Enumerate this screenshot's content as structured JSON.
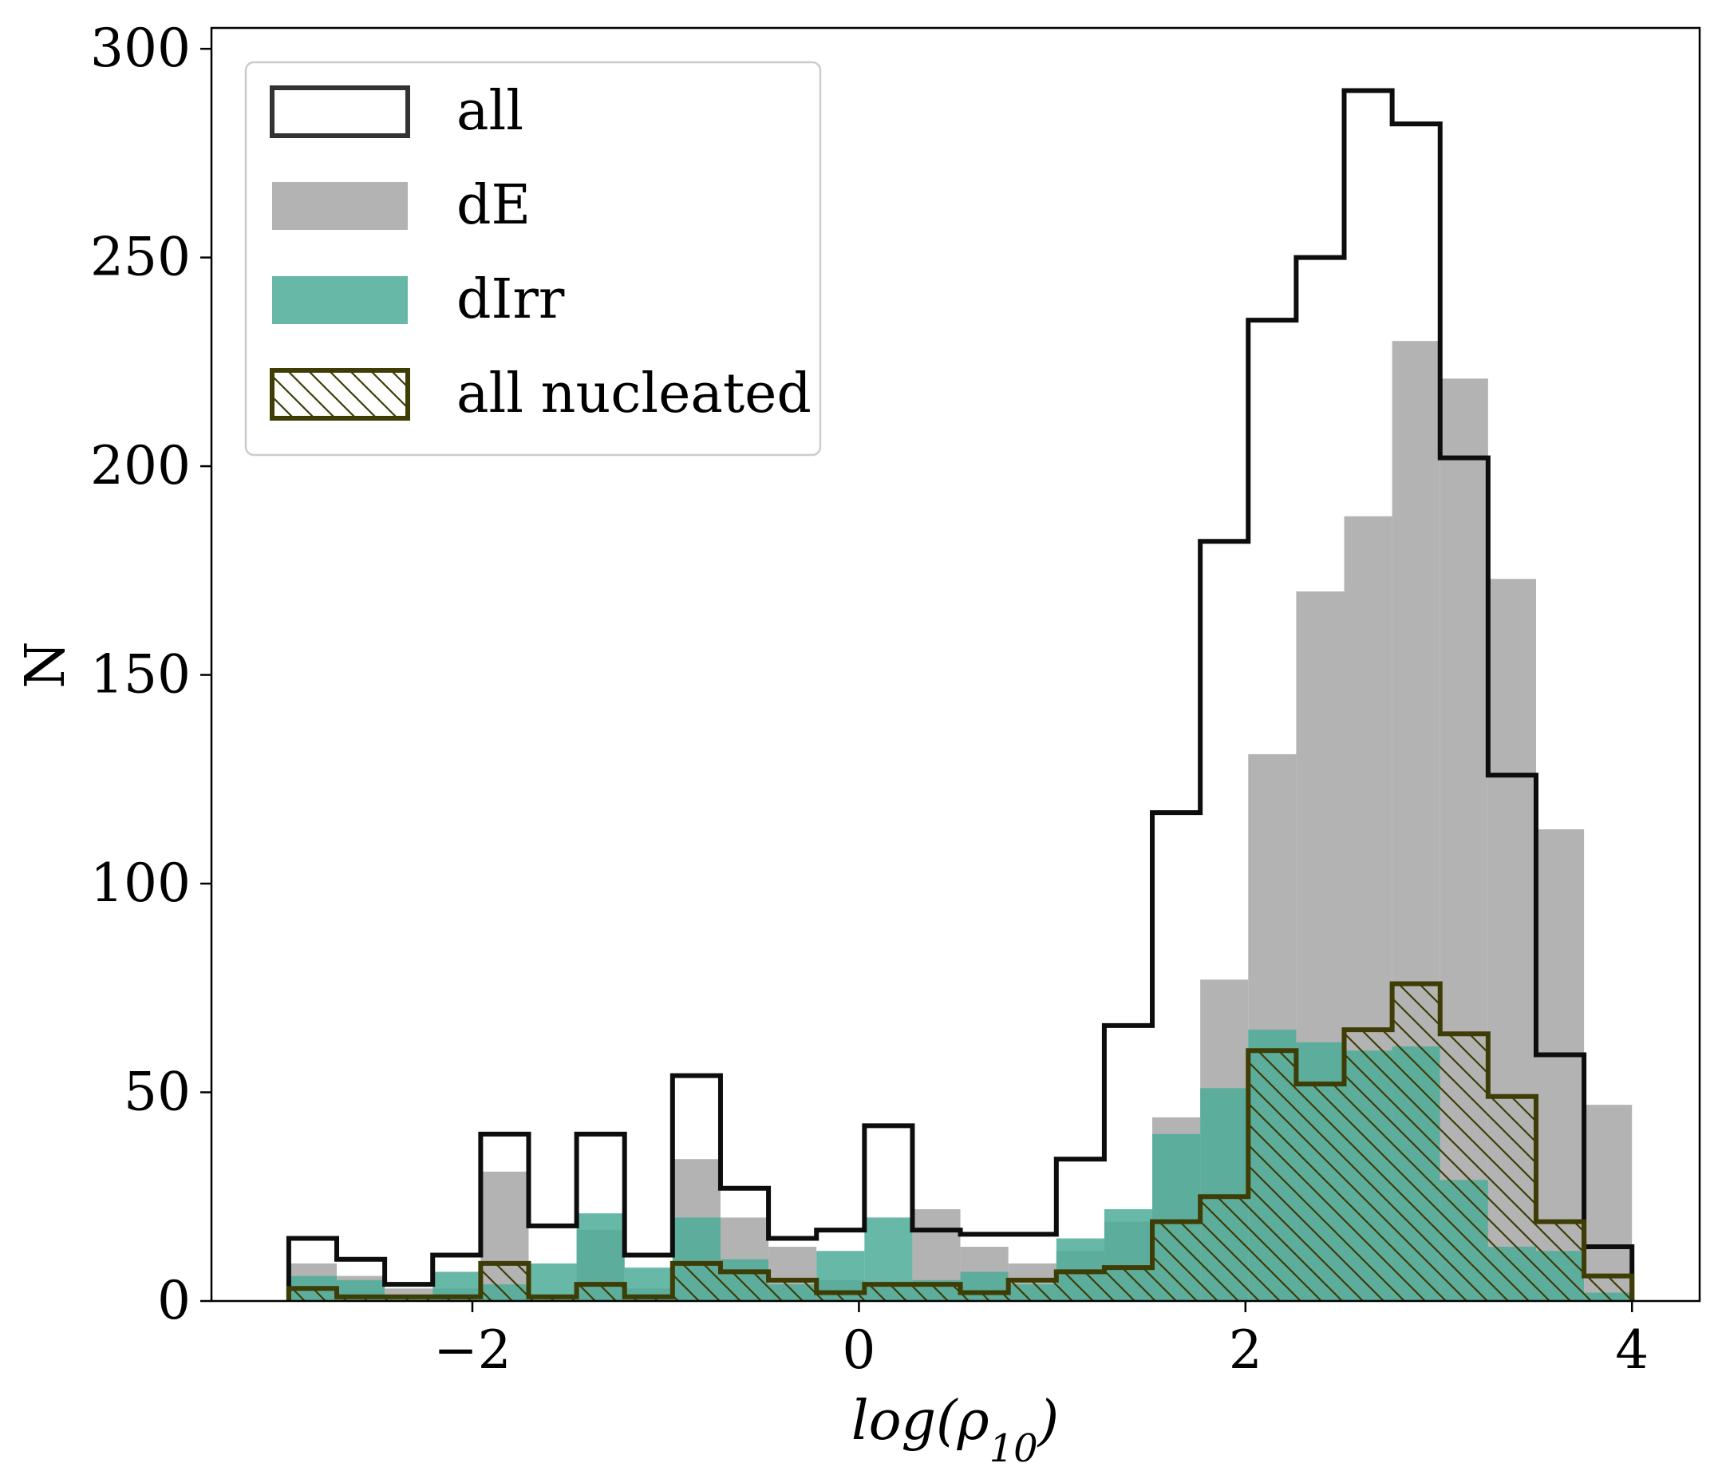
{
  "chart_data": {
    "type": "histogram",
    "title": "",
    "xlabel": "log(ρ",
    "xlabel_subscript": "10",
    "xlabel_close": ")",
    "ylabel": "N",
    "xlim": [
      -3.35,
      4.35
    ],
    "ylim": [
      0,
      305
    ],
    "bins": {
      "start": -2.95,
      "end": 4.0,
      "count": 28
    },
    "x_ticks": [
      {
        "value": -2,
        "label": "−2"
      },
      {
        "value": 0,
        "label": "0"
      },
      {
        "value": 2,
        "label": "2"
      },
      {
        "value": 4,
        "label": "4"
      }
    ],
    "y_ticks": [
      {
        "value": 0,
        "label": "0"
      },
      {
        "value": 50,
        "label": "50"
      },
      {
        "value": 100,
        "label": "100"
      },
      {
        "value": 150,
        "label": "150"
      },
      {
        "value": 200,
        "label": "200"
      },
      {
        "value": 250,
        "label": "250"
      },
      {
        "value": 300,
        "label": "300"
      }
    ],
    "legend_position": "top-left",
    "series": [
      {
        "name": "dE",
        "style": "filled",
        "color": "#b3b3b3",
        "counts": [
          9,
          6,
          3,
          3,
          31,
          1,
          17,
          3,
          34,
          20,
          13,
          5,
          4,
          22,
          13,
          9,
          12,
          19,
          44,
          77,
          131,
          170,
          188,
          230,
          221,
          173,
          113,
          47
        ]
      },
      {
        "name": "dIrr",
        "style": "filled",
        "color": "#4dab98",
        "alpha": 0.85,
        "counts": [
          6,
          5,
          1,
          7,
          4,
          9,
          21,
          8,
          20,
          10,
          4,
          12,
          20,
          5,
          7,
          4,
          15,
          22,
          40,
          51,
          65,
          62,
          60,
          61,
          29,
          13,
          12,
          2
        ]
      },
      {
        "name": "all",
        "style": "step",
        "color": "#0d0d0d",
        "counts": [
          15,
          10,
          4,
          11,
          40,
          18,
          40,
          11,
          54,
          27,
          15,
          17,
          42,
          17,
          16,
          16,
          34,
          66,
          117,
          182,
          235,
          250,
          290,
          282,
          202,
          126,
          59,
          13
        ]
      },
      {
        "name": "all nucleated",
        "style": "hatched-step",
        "color": "#3d3d05",
        "counts": [
          3,
          1,
          1,
          1,
          9,
          1,
          4,
          1,
          9,
          7,
          5,
          2,
          4,
          4,
          2,
          5,
          7,
          8,
          19,
          25,
          60,
          52,
          65,
          76,
          64,
          49,
          19,
          6
        ]
      }
    ]
  }
}
